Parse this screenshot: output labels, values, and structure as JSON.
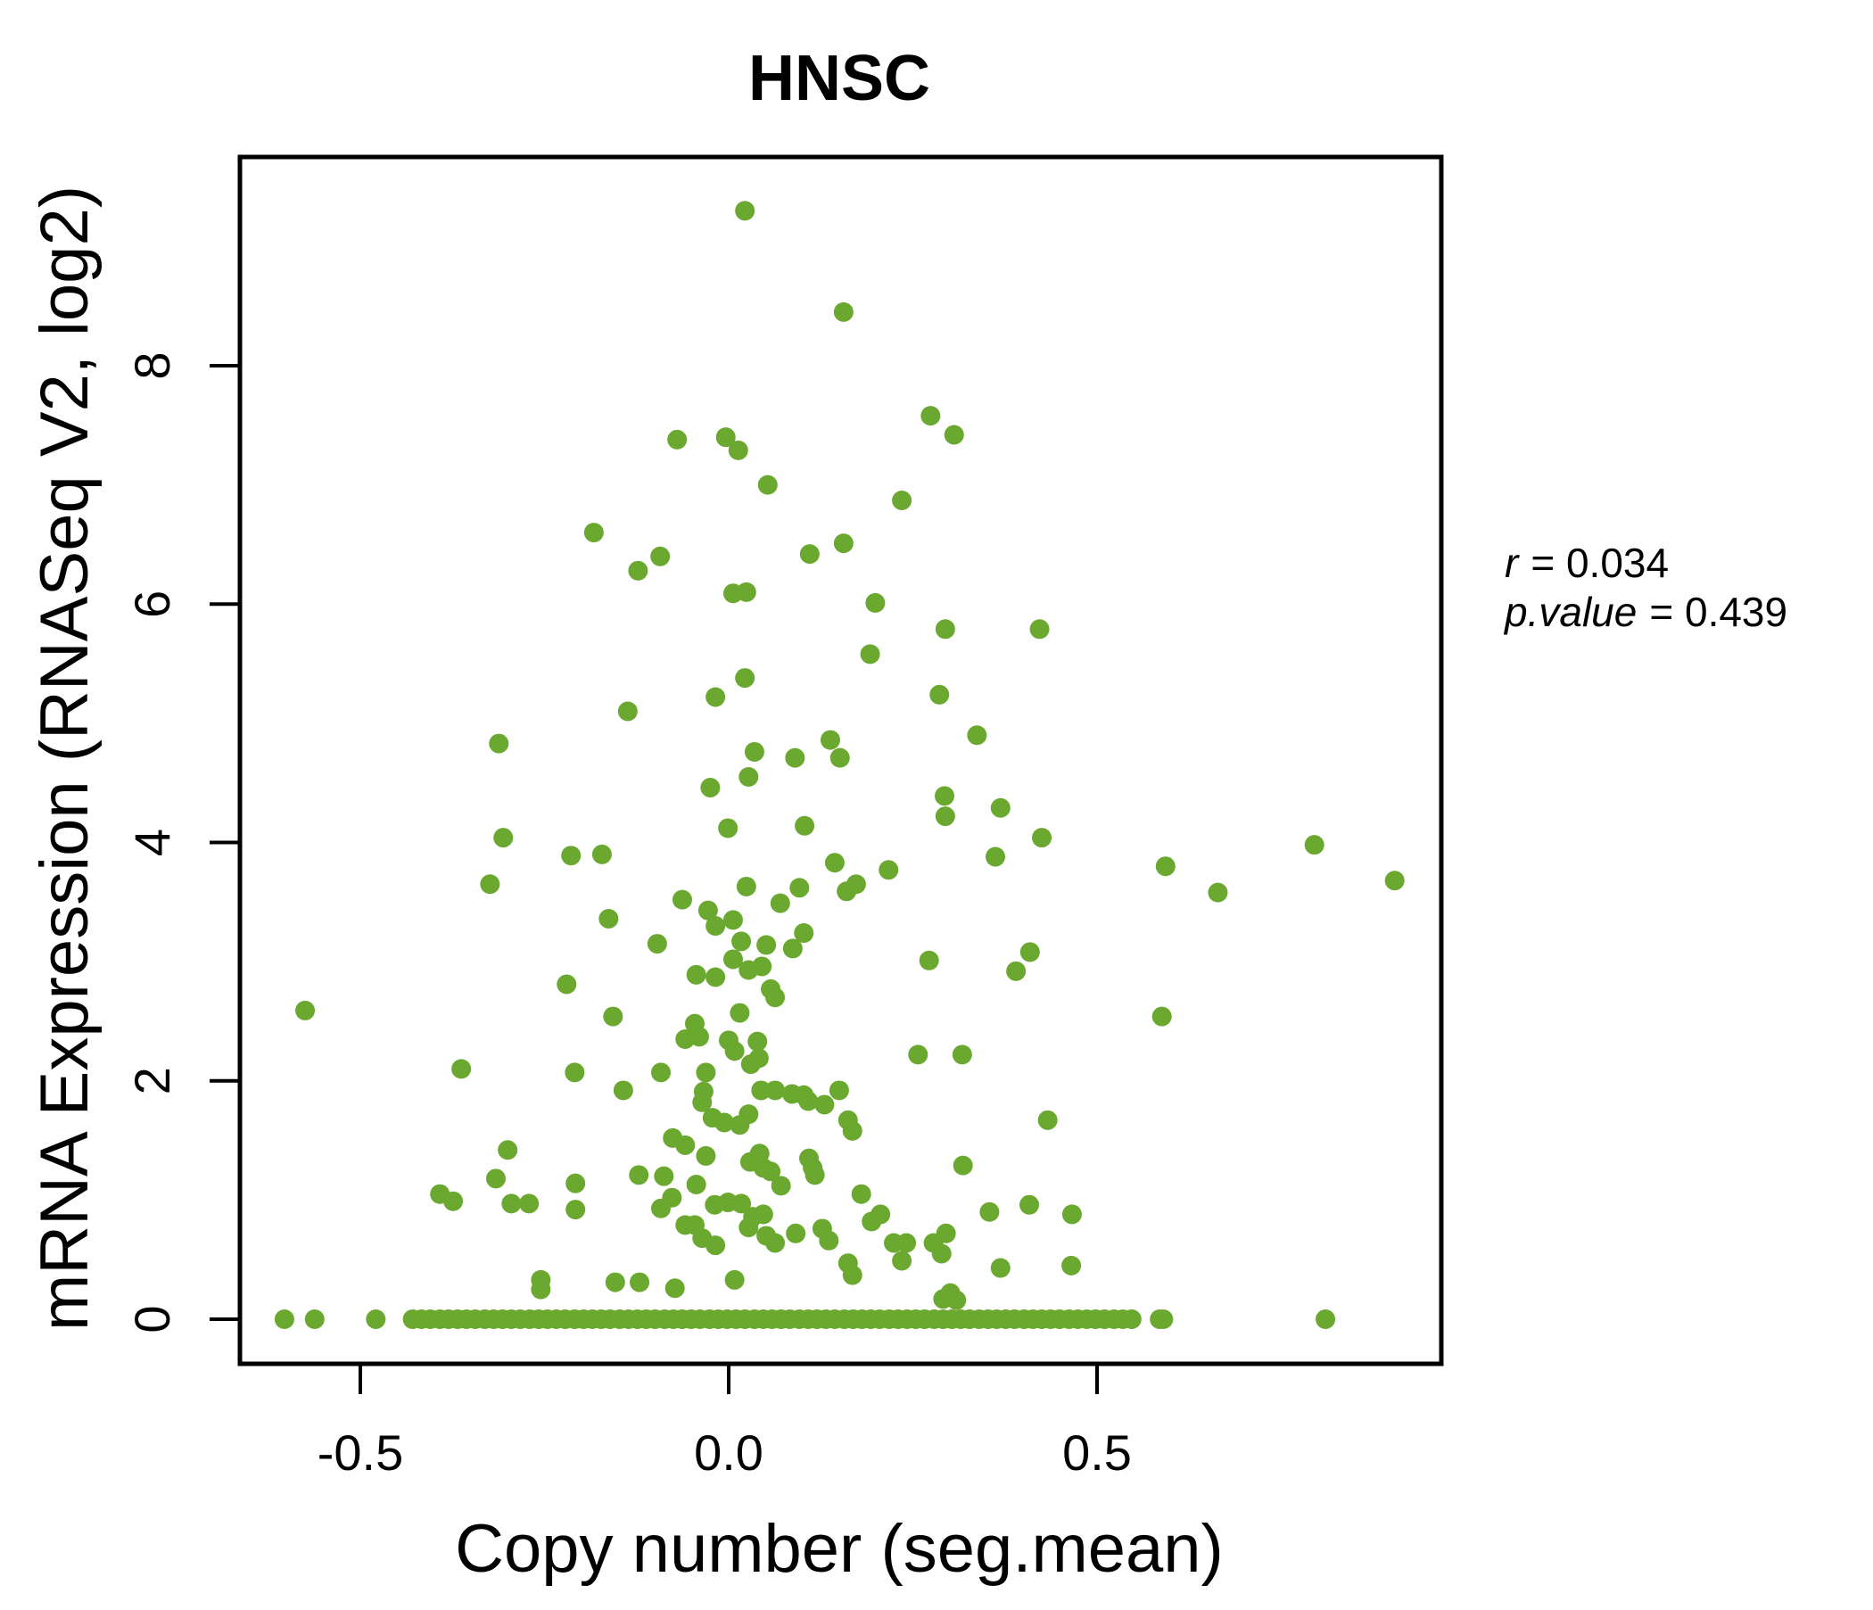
{
  "colors": {
    "title_green": "#5CA928",
    "point_green": "#6AA82F",
    "axis_black": "#000000"
  },
  "annotation": {
    "r_var": "r",
    "r_rest": "= 0.034",
    "p_var": "p.value",
    "p_rest": "= 0.439"
  },
  "chart_data": {
    "type": "scatter",
    "title": "HNSC",
    "xlabel": "Copy number (seg.mean)",
    "ylabel": "mRNA Expression (RNASeq V2, log2)",
    "xlim": [
      -0.66,
      0.97
    ],
    "ylim": [
      -0.37,
      9.75
    ],
    "grid": false,
    "x_ticks": [
      {
        "value": -0.5,
        "label": "-0.5"
      },
      {
        "value": 0.0,
        "label": "0.0"
      },
      {
        "value": 0.5,
        "label": "0.5"
      }
    ],
    "y_ticks": [
      {
        "value": 0,
        "label": "0"
      },
      {
        "value": 2,
        "label": "2"
      },
      {
        "value": 4,
        "label": "4"
      },
      {
        "value": 6,
        "label": "6"
      },
      {
        "value": 8,
        "label": "8"
      }
    ],
    "annotations": [
      "r = 0.034",
      "p.value = 0.439"
    ],
    "points": [
      [
        0.022,
        9.3
      ],
      [
        0.156,
        8.45
      ],
      [
        0.274,
        7.58
      ],
      [
        0.306,
        7.42
      ],
      [
        -0.004,
        7.4
      ],
      [
        0.013,
        7.29
      ],
      [
        -0.07,
        7.38
      ],
      [
        0.053,
        7.0
      ],
      [
        0.235,
        6.87
      ],
      [
        -0.183,
        6.6
      ],
      [
        0.156,
        6.51
      ],
      [
        -0.093,
        6.4
      ],
      [
        0.11,
        6.42
      ],
      [
        -0.123,
        6.28
      ],
      [
        0.006,
        6.09
      ],
      [
        0.024,
        6.1
      ],
      [
        0.199,
        6.01
      ],
      [
        0.294,
        5.79
      ],
      [
        0.422,
        5.79
      ],
      [
        0.192,
        5.58
      ],
      [
        0.022,
        5.38
      ],
      [
        -0.018,
        5.22
      ],
      [
        0.286,
        5.24
      ],
      [
        -0.137,
        5.1
      ],
      [
        0.337,
        4.9
      ],
      [
        0.138,
        4.86
      ],
      [
        -0.312,
        4.83
      ],
      [
        0.035,
        4.76
      ],
      [
        0.09,
        4.71
      ],
      [
        0.151,
        4.71
      ],
      [
        0.027,
        4.55
      ],
      [
        -0.025,
        4.46
      ],
      [
        0.293,
        4.39
      ],
      [
        0.369,
        4.29
      ],
      [
        0.294,
        4.22
      ],
      [
        -0.001,
        4.12
      ],
      [
        0.103,
        4.14
      ],
      [
        0.425,
        4.04
      ],
      [
        -0.306,
        4.04
      ],
      [
        -0.214,
        3.89
      ],
      [
        -0.172,
        3.9
      ],
      [
        0.362,
        3.88
      ],
      [
        0.144,
        3.83
      ],
      [
        0.217,
        3.77
      ],
      [
        -0.324,
        3.65
      ],
      [
        0.173,
        3.65
      ],
      [
        0.16,
        3.59
      ],
      [
        0.024,
        3.63
      ],
      [
        0.096,
        3.62
      ],
      [
        -0.063,
        3.52
      ],
      [
        0.07,
        3.49
      ],
      [
        -0.028,
        3.43
      ],
      [
        -0.163,
        3.36
      ],
      [
        -0.018,
        3.3
      ],
      [
        0.006,
        3.35
      ],
      [
        0.017,
        3.17
      ],
      [
        0.051,
        3.14
      ],
      [
        0.102,
        3.24
      ],
      [
        0.087,
        3.11
      ],
      [
        -0.097,
        3.15
      ],
      [
        0.409,
        3.08
      ],
      [
        0.272,
        3.01
      ],
      [
        0.006,
        3.02
      ],
      [
        -0.044,
        2.89
      ],
      [
        -0.018,
        2.87
      ],
      [
        0.027,
        2.93
      ],
      [
        0.045,
        2.96
      ],
      [
        0.057,
        2.77
      ],
      [
        0.063,
        2.7
      ],
      [
        0.39,
        2.92
      ],
      [
        -0.22,
        2.81
      ],
      [
        0.015,
        2.57
      ],
      [
        -0.575,
        2.59
      ],
      [
        -0.157,
        2.54
      ],
      [
        0.588,
        2.54
      ],
      [
        -0.046,
        2.48
      ],
      [
        -0.04,
        2.37
      ],
      [
        0.0,
        2.34
      ],
      [
        -0.059,
        2.35
      ],
      [
        0.008,
        2.25
      ],
      [
        0.039,
        2.33
      ],
      [
        0.041,
        2.19
      ],
      [
        0.03,
        2.14
      ],
      [
        -0.031,
        2.07
      ],
      [
        0.257,
        2.22
      ],
      [
        0.317,
        2.22
      ],
      [
        -0.363,
        2.1
      ],
      [
        -0.209,
        2.07
      ],
      [
        -0.092,
        2.07
      ],
      [
        -0.143,
        1.92
      ],
      [
        0.044,
        1.92
      ],
      [
        0.063,
        1.92
      ],
      [
        0.086,
        1.89
      ],
      [
        0.102,
        1.88
      ],
      [
        0.108,
        1.83
      ],
      [
        0.13,
        1.8
      ],
      [
        0.15,
        1.92
      ],
      [
        -0.034,
        1.91
      ],
      [
        -0.036,
        1.82
      ],
      [
        -0.022,
        1.69
      ],
      [
        -0.006,
        1.65
      ],
      [
        0.015,
        1.63
      ],
      [
        0.027,
        1.72
      ],
      [
        0.162,
        1.67
      ],
      [
        0.168,
        1.58
      ],
      [
        0.433,
        1.67
      ],
      [
        -0.076,
        1.52
      ],
      [
        -0.059,
        1.46
      ],
      [
        -0.3,
        1.42
      ],
      [
        -0.031,
        1.37
      ],
      [
        0.042,
        1.39
      ],
      [
        0.029,
        1.32
      ],
      [
        0.047,
        1.27
      ],
      [
        0.057,
        1.24
      ],
      [
        0.109,
        1.35
      ],
      [
        0.114,
        1.27
      ],
      [
        0.117,
        1.21
      ],
      [
        -0.316,
        1.18
      ],
      [
        -0.208,
        1.14
      ],
      [
        -0.122,
        1.21
      ],
      [
        -0.088,
        1.2
      ],
      [
        0.071,
        1.12
      ],
      [
        -0.044,
        1.13
      ],
      [
        0.318,
        1.29
      ],
      [
        -0.392,
        1.05
      ],
      [
        -0.374,
        0.99
      ],
      [
        -0.295,
        0.97
      ],
      [
        -0.271,
        0.97
      ],
      [
        -0.208,
        0.92
      ],
      [
        -0.092,
        0.93
      ],
      [
        -0.077,
        1.02
      ],
      [
        0.18,
        1.05
      ],
      [
        -0.019,
        0.96
      ],
      [
        -0.001,
        0.98
      ],
      [
        0.017,
        0.97
      ],
      [
        0.033,
        0.86
      ],
      [
        0.047,
        0.88
      ],
      [
        0.027,
        0.77
      ],
      [
        -0.059,
        0.79
      ],
      [
        -0.046,
        0.79
      ],
      [
        -0.036,
        0.68
      ],
      [
        0.051,
        0.7
      ],
      [
        0.063,
        0.64
      ],
      [
        -0.018,
        0.62
      ],
      [
        0.091,
        0.72
      ],
      [
        0.127,
        0.76
      ],
      [
        0.136,
        0.66
      ],
      [
        0.194,
        0.82
      ],
      [
        0.206,
        0.88
      ],
      [
        0.224,
        0.64
      ],
      [
        0.241,
        0.64
      ],
      [
        0.235,
        0.49
      ],
      [
        0.278,
        0.64
      ],
      [
        0.289,
        0.55
      ],
      [
        0.295,
        0.72
      ],
      [
        0.354,
        0.9
      ],
      [
        0.408,
        0.96
      ],
      [
        0.466,
        0.88
      ],
      [
        0.162,
        0.47
      ],
      [
        0.168,
        0.37
      ],
      [
        0.369,
        0.43
      ],
      [
        0.465,
        0.45
      ],
      [
        0.301,
        0.22
      ],
      [
        0.309,
        0.16
      ],
      [
        0.291,
        0.17
      ],
      [
        0.008,
        0.33
      ],
      [
        -0.255,
        0.33
      ],
      [
        -0.255,
        0.25
      ],
      [
        -0.154,
        0.31
      ],
      [
        -0.121,
        0.31
      ],
      [
        -0.073,
        0.26
      ],
      [
        0.593,
        3.8
      ],
      [
        0.664,
        3.58
      ],
      [
        0.795,
        3.98
      ],
      [
        0.904,
        3.68
      ]
    ],
    "zero_line_points_x": [
      -0.603,
      -0.562,
      -0.479,
      -0.429,
      -0.417,
      -0.405,
      -0.392,
      -0.38,
      -0.368,
      -0.356,
      -0.344,
      -0.331,
      -0.319,
      -0.307,
      -0.295,
      -0.283,
      -0.27,
      -0.258,
      -0.246,
      -0.234,
      -0.222,
      -0.209,
      -0.197,
      -0.185,
      -0.173,
      -0.161,
      -0.148,
      -0.136,
      -0.124,
      -0.112,
      -0.1,
      -0.087,
      -0.075,
      -0.063,
      -0.051,
      -0.039,
      -0.026,
      -0.014,
      -0.002,
      0.01,
      0.022,
      0.035,
      0.047,
      0.059,
      0.071,
      0.083,
      0.096,
      0.108,
      0.12,
      0.132,
      0.144,
      0.157,
      0.169,
      0.181,
      0.193,
      0.205,
      0.218,
      0.23,
      0.242,
      0.254,
      0.266,
      0.279,
      0.291,
      0.303,
      0.315,
      0.327,
      0.34,
      0.352,
      0.364,
      0.376,
      0.388,
      0.401,
      0.413,
      0.425,
      0.437,
      0.449,
      0.462,
      0.474,
      0.486,
      0.498,
      0.51,
      0.523,
      0.535,
      0.547,
      0.585,
      0.59,
      0.81
    ]
  }
}
